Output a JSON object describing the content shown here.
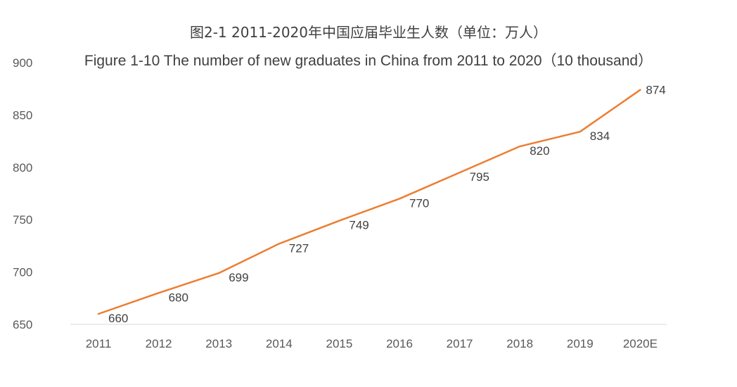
{
  "chart_data": {
    "type": "line",
    "title": "图2-1 2011-2020年中国应届毕业生人数（单位：万人）",
    "subtitle": "Figure 1-10 The number of new graduates in China from 2011 to 2020（10 thousand）",
    "categories": [
      "2011",
      "2012",
      "2013",
      "2014",
      "2015",
      "2016",
      "2017",
      "2018",
      "2019",
      "2020E"
    ],
    "series": [
      {
        "values": [
          660,
          680,
          699,
          727,
          749,
          770,
          795,
          820,
          834,
          874
        ],
        "color": "#ED7D31"
      }
    ],
    "data_labels": [
      "660",
      "680",
      "699",
      "727",
      "749",
      "770",
      "795",
      "820",
      "834",
      "874"
    ],
    "ylim": [
      650,
      900
    ],
    "yticks": [
      "650",
      "700",
      "750",
      "800",
      "850",
      "900"
    ],
    "xlabel": "",
    "ylabel": "",
    "grid": false,
    "legend": "none"
  }
}
